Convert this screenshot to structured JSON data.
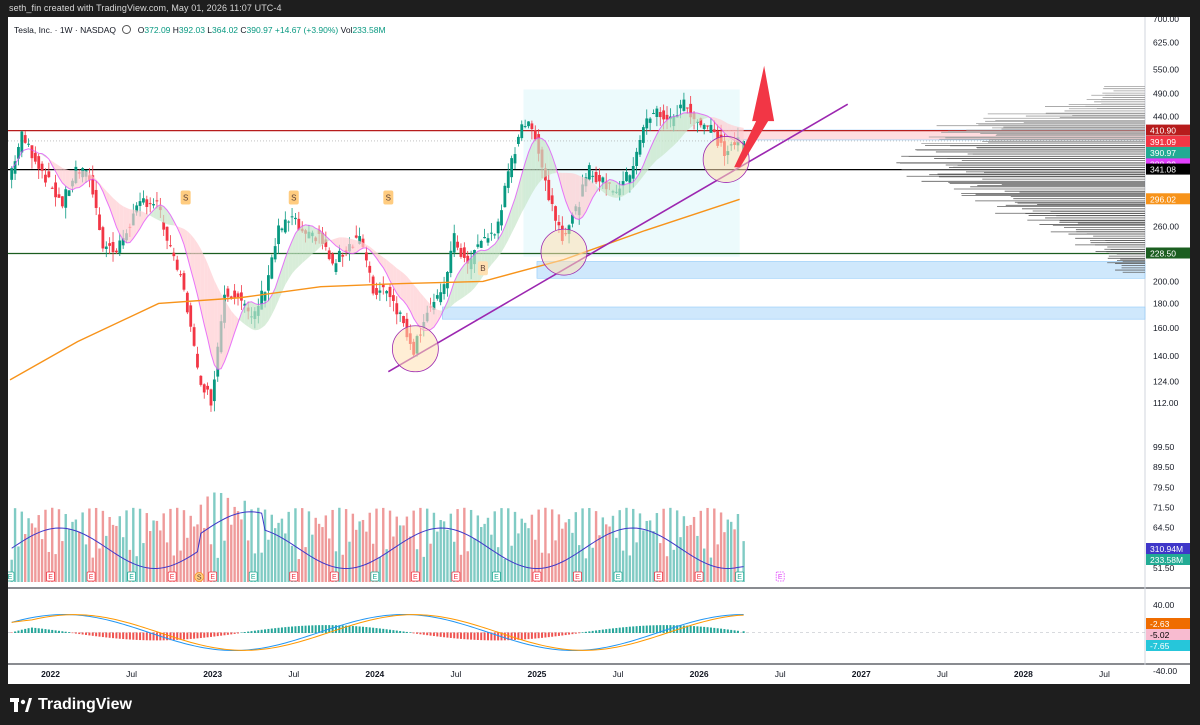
{
  "caption": "seth_fin created with TradingView.com, May 01, 2026 11:07 UTC-4",
  "brand": "TradingView",
  "legend": {
    "symbol": "Tesla, Inc. · 1W · NASDAQ",
    "open_label": "O",
    "open": "372.09",
    "high_label": "H",
    "high": "392.03",
    "low_label": "L",
    "low": "364.02",
    "close_label": "C",
    "close": "390.97",
    "change": "+14.67 (+3.90%)",
    "vol_label": "Vol",
    "vol": "233.58M"
  },
  "chart_data": {
    "type": "candlestick",
    "price_axis_ticks": [
      "700.00",
      "625.00",
      "550.00",
      "490.00",
      "440.00",
      "391.09",
      "341.08",
      "296.02",
      "260.00",
      "228.50",
      "200.00",
      "180.00",
      "160.00",
      "140.00",
      "124.00",
      "112.00",
      "99.50",
      "89.50",
      "79.50",
      "71.50",
      "64.50",
      "57.50",
      "51.50",
      "46.50"
    ],
    "price_scale": "log",
    "y_range": [
      46.5,
      700
    ],
    "x_axis_labels": [
      "2022",
      "Jul",
      "2023",
      "Jul",
      "2024",
      "Jul",
      "2025",
      "Jul",
      "2026",
      "Jul",
      "2027",
      "Jul",
      "2028",
      "Jul"
    ],
    "x_range": [
      "2021-10",
      "2028-10"
    ],
    "price_labels": [
      {
        "value": "410.90",
        "color": "#b71c1c"
      },
      {
        "value": "391.09",
        "color": "#f23645"
      },
      {
        "value": "390.97",
        "color": "#22ab94"
      },
      {
        "value": "04:52:15",
        "color": "#22ab94"
      },
      {
        "value": "388.39",
        "color": "#e040fb"
      },
      {
        "value": "341.08",
        "color": "#000000"
      },
      {
        "value": "296.02",
        "color": "#f7931a"
      },
      {
        "value": "228.50",
        "color": "#1b5e20"
      }
    ],
    "horizontal_lines": [
      {
        "price": 410.9,
        "color": "#b71c1c"
      },
      {
        "price": 341.08,
        "color": "#000000"
      },
      {
        "price": 228.5,
        "color": "#1b5e20"
      }
    ],
    "zones": [
      {
        "from": 203,
        "to": 220,
        "start": "2025-01",
        "end": "2028-10",
        "color": "#bbdefb"
      },
      {
        "from": 167,
        "to": 177,
        "start": "2024-06",
        "end": "2028-10",
        "color": "#bbdefb"
      },
      {
        "from": 393,
        "to": 412,
        "start": "2026-02",
        "end": "2028-10",
        "color": "#ffcdd2"
      }
    ],
    "trendline": {
      "from": {
        "date": "2024-02",
        "price": 130
      },
      "to": {
        "date": "2026-12",
        "price": 466
      },
      "color": "#9c27b0"
    },
    "circles": [
      {
        "date": "2024-04",
        "price": 145
      },
      {
        "date": "2025-03",
        "price": 230
      },
      {
        "date": "2026-03",
        "price": 358
      }
    ],
    "volume_axis_labels": [
      {
        "value": "310.94M",
        "color": "#3f37c9"
      },
      {
        "value": "233.58M",
        "color": "#22ab94"
      }
    ],
    "macd_axis_ticks": [
      "40.00",
      "-40.00"
    ],
    "macd_labels": [
      {
        "value": "-2.63",
        "color": "#ef6c00"
      },
      {
        "value": "-5.02",
        "color": "#f8bbd0"
      },
      {
        "value": "-7.65",
        "color": "#26c6da"
      }
    ],
    "series": [
      {
        "name": "Price",
        "points": [
          [
            "2021-10",
            325
          ],
          [
            "2021-11",
            400
          ],
          [
            "2021-12",
            360
          ],
          [
            "2022-01",
            320
          ],
          [
            "2022-02",
            290
          ],
          [
            "2022-03",
            340
          ],
          [
            "2022-04",
            330
          ],
          [
            "2022-05",
            240
          ],
          [
            "2022-06",
            230
          ],
          [
            "2022-07",
            265
          ],
          [
            "2022-08",
            295
          ],
          [
            "2022-09",
            290
          ],
          [
            "2022-10",
            230
          ],
          [
            "2022-11",
            195
          ],
          [
            "2022-12",
            130
          ],
          [
            "2023-01",
            113
          ],
          [
            "2023-02",
            190
          ],
          [
            "2023-03",
            190
          ],
          [
            "2023-04",
            165
          ],
          [
            "2023-05",
            195
          ],
          [
            "2023-06",
            255
          ],
          [
            "2023-07",
            270
          ],
          [
            "2023-08",
            245
          ],
          [
            "2023-09",
            250
          ],
          [
            "2023-10",
            215
          ],
          [
            "2023-11",
            235
          ],
          [
            "2023-12",
            250
          ],
          [
            "2024-01",
            190
          ],
          [
            "2024-02",
            195
          ],
          [
            "2024-03",
            170
          ],
          [
            "2024-04",
            145
          ],
          [
            "2024-05",
            175
          ],
          [
            "2024-06",
            185
          ],
          [
            "2024-07",
            245
          ],
          [
            "2024-08",
            215
          ],
          [
            "2024-09",
            245
          ],
          [
            "2024-10",
            250
          ],
          [
            "2024-11",
            330
          ],
          [
            "2024-12",
            430
          ],
          [
            "2025-01",
            405
          ],
          [
            "2025-02",
            300
          ],
          [
            "2025-03",
            250
          ],
          [
            "2025-04",
            280
          ],
          [
            "2025-05",
            340
          ],
          [
            "2025-06",
            320
          ],
          [
            "2025-07",
            310
          ],
          [
            "2025-08",
            335
          ],
          [
            "2025-09",
            420
          ],
          [
            "2025-10",
            450
          ],
          [
            "2025-11",
            430
          ],
          [
            "2025-12",
            470
          ],
          [
            "2026-01",
            430
          ],
          [
            "2026-02",
            415
          ],
          [
            "2026-03",
            370
          ],
          [
            "2026-04",
            391
          ]
        ]
      },
      {
        "name": "MA",
        "points": [
          [
            "2021-10",
            125
          ],
          [
            "2022-03",
            150
          ],
          [
            "2022-09",
            180
          ],
          [
            "2023-03",
            185
          ],
          [
            "2023-09",
            195
          ],
          [
            "2024-03",
            198
          ],
          [
            "2024-09",
            200
          ],
          [
            "2025-03",
            222
          ],
          [
            "2025-09",
            255
          ],
          [
            "2026-04",
            296
          ]
        ]
      }
    ],
    "markers": [
      {
        "label": "S",
        "date": "2022-11"
      },
      {
        "label": "S",
        "date": "2023-07"
      },
      {
        "label": "S",
        "date": "2024-02"
      },
      {
        "label": "B",
        "date": "2024-09"
      }
    ],
    "earnings_label": "E",
    "dividend_label": "S"
  },
  "colors": {
    "up": "#089981",
    "down": "#f23645",
    "ma": "#f7931a",
    "ema": "#e040fb",
    "trend": "#9c27b0",
    "arrow": "#f23645"
  }
}
